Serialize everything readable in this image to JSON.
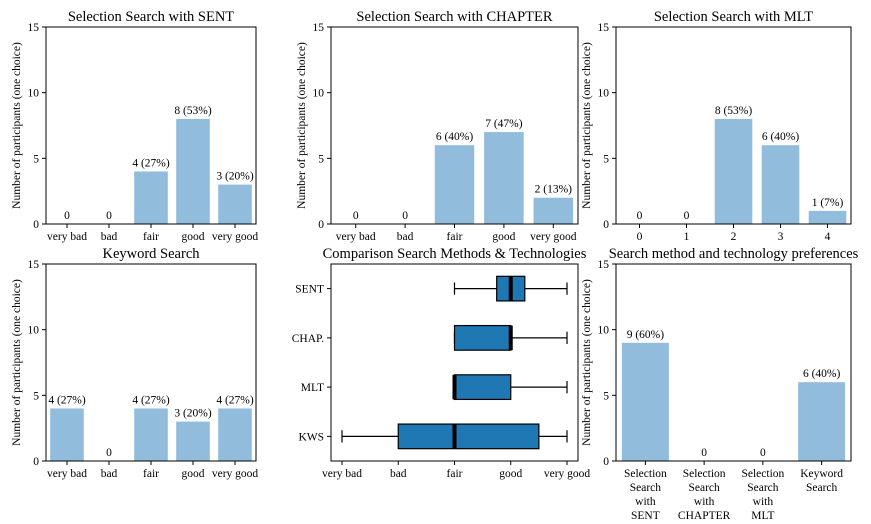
{
  "colors": {
    "bar": "#92bcdb",
    "box": "#1f77b4",
    "median": "#000000",
    "axis": "#000000"
  },
  "chart_data": [
    {
      "type": "bar",
      "title": "Selection Search with SENT",
      "ylabel": "Number of participants (one choice)",
      "categories": [
        "very bad",
        "bad",
        "fair",
        "good",
        "very good"
      ],
      "values": [
        0,
        0,
        4,
        8,
        3
      ],
      "data_labels": [
        "0",
        "0",
        "4 (27%)",
        "8 (53%)",
        "3 (20%)"
      ],
      "yticks": [
        "0",
        "5",
        "10",
        "15"
      ],
      "ylim": [
        0,
        15
      ]
    },
    {
      "type": "bar",
      "title": "Selection Search with CHAPTER",
      "ylabel": "Number of participants (one choice)",
      "categories": [
        "very bad",
        "bad",
        "fair",
        "good",
        "very good"
      ],
      "values": [
        0,
        0,
        6,
        7,
        2
      ],
      "data_labels": [
        "0",
        "0",
        "6 (40%)",
        "7 (47%)",
        "2 (13%)"
      ],
      "yticks": [
        "0",
        "5",
        "10",
        "15"
      ],
      "ylim": [
        0,
        15
      ]
    },
    {
      "type": "bar",
      "title": "Selection Search with MLT",
      "ylabel": "Number of participants (one choice)",
      "categories": [
        "0",
        "1",
        "2",
        "3",
        "4"
      ],
      "values": [
        0,
        0,
        8,
        6,
        1
      ],
      "data_labels": [
        "0",
        "0",
        "8 (53%)",
        "6 (40%)",
        "1 (7%)"
      ],
      "yticks": [
        "0",
        "5",
        "10",
        "15"
      ],
      "ylim": [
        0,
        15
      ]
    },
    {
      "type": "bar",
      "title": "Keyword Search",
      "ylabel": "Number of participants (one choice)",
      "categories": [
        "very bad",
        "bad",
        "fair",
        "good",
        "very good"
      ],
      "values": [
        4,
        0,
        4,
        3,
        4
      ],
      "data_labels": [
        "4 (27%)",
        "0",
        "4 (27%)",
        "3 (20%)",
        "4 (27%)"
      ],
      "yticks": [
        "0",
        "5",
        "10",
        "15"
      ],
      "ylim": [
        0,
        15
      ]
    },
    {
      "type": "boxplot",
      "title": "Comparison Search Methods & Technologies",
      "xticks": [
        "very bad",
        "bad",
        "fair",
        "good",
        "very good"
      ],
      "xlim": [
        0,
        4
      ],
      "boxes": [
        {
          "label": "SENT",
          "whisker_low": 2,
          "q1": 2.75,
          "median": 3,
          "q3": 3.25,
          "whisker_high": 4
        },
        {
          "label": "CHAP.",
          "whisker_low": 2,
          "q1": 2,
          "median": 3,
          "q3": 3,
          "whisker_high": 4
        },
        {
          "label": "MLT",
          "whisker_low": 2,
          "q1": 2,
          "median": 2,
          "q3": 3,
          "whisker_high": 4
        },
        {
          "label": "KWS",
          "whisker_low": 0,
          "q1": 1,
          "median": 2,
          "q3": 3.5,
          "whisker_high": 4
        }
      ]
    },
    {
      "type": "bar",
      "title": "Search method and technology preferences",
      "ylabel": "Number of participants (one choice)",
      "categories": [
        [
          "Selection",
          "Search",
          "with",
          "SENT"
        ],
        [
          "Selection",
          "Search",
          "with",
          "CHAPTER"
        ],
        [
          "Selection",
          "Search",
          "with",
          "MLT"
        ],
        [
          "Keyword",
          "Search"
        ]
      ],
      "values": [
        9,
        0,
        0,
        6
      ],
      "data_labels": [
        "9 (60%)",
        "0",
        "0",
        "6 (40%)"
      ],
      "yticks": [
        "0",
        "5",
        "10",
        "15"
      ],
      "ylim": [
        0,
        15
      ]
    }
  ]
}
